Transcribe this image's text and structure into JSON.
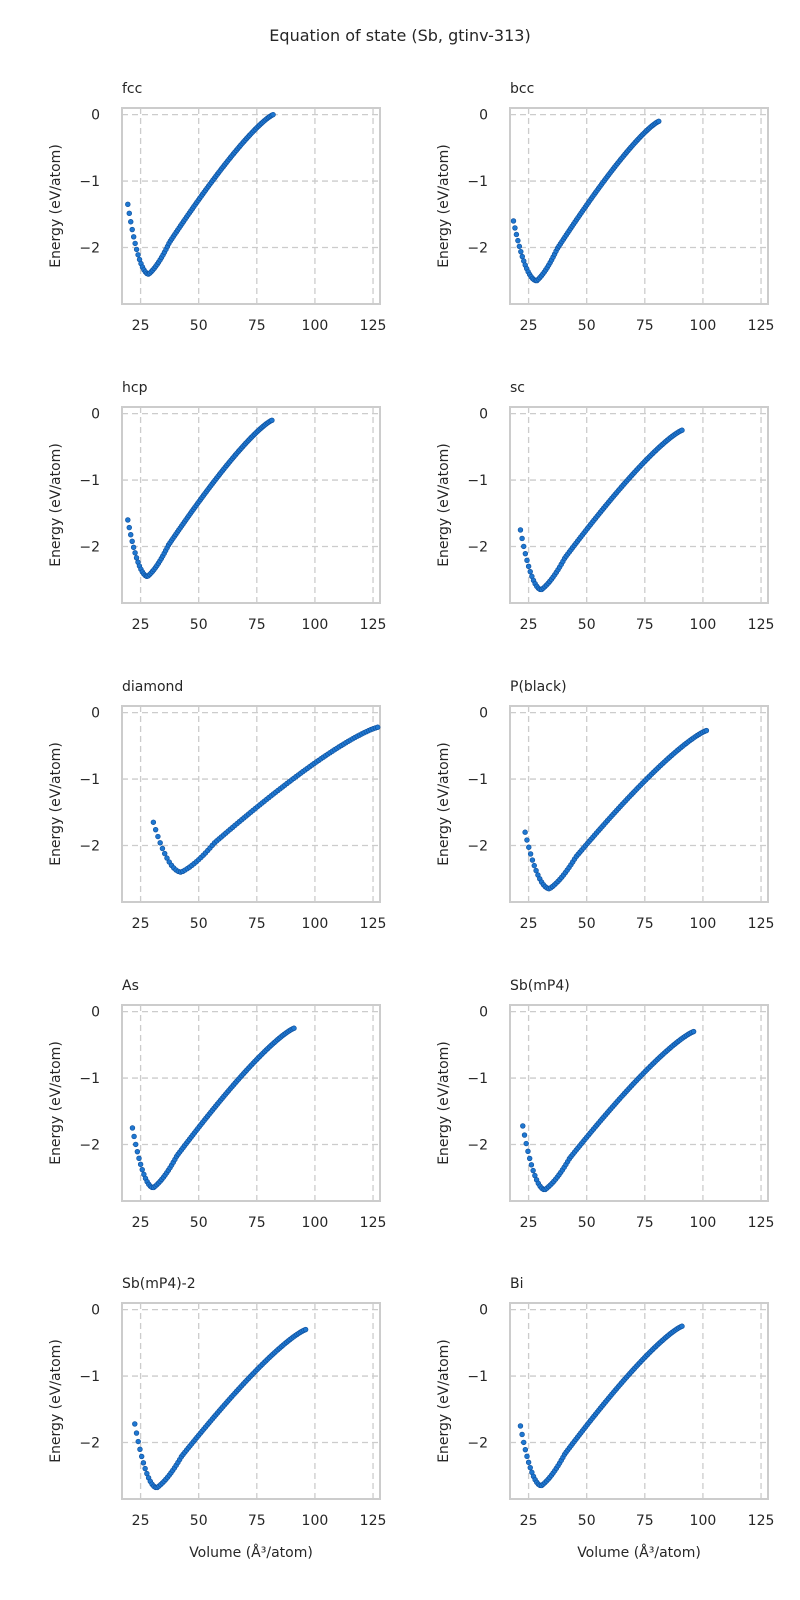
{
  "figure": {
    "title": "Equation of state (Sb, gtinv-313)",
    "point_color": "#1f77d0",
    "point_edge_color": "#0d4f9c",
    "grid_color": "#cccccc"
  },
  "chart_data": [
    {
      "type": "scatter",
      "title": "fcc",
      "xlabel": "",
      "ylabel": "Energy (eV/atom)",
      "xlim": [
        17,
        128
      ],
      "ylim": [
        -2.85,
        0.1
      ],
      "xticks": [
        25,
        50,
        75,
        100,
        125
      ],
      "yticks": [
        0,
        -1,
        -2
      ],
      "grid": true,
      "curve": {
        "v_min": 19.5,
        "v_max": 82,
        "v0": 28.5,
        "e_min": -2.4,
        "e_end": 0.0,
        "n": 100
      }
    },
    {
      "type": "scatter",
      "title": "bcc",
      "xlabel": "",
      "ylabel": "Energy (eV/atom)",
      "xlim": [
        17,
        128
      ],
      "ylim": [
        -2.85,
        0.1
      ],
      "xticks": [
        25,
        50,
        75,
        100,
        125
      ],
      "yticks": [
        0,
        -1,
        -2
      ],
      "grid": true,
      "curve": {
        "v_min": 18.5,
        "v_max": 81,
        "v0": 28.5,
        "e_min": -2.5,
        "e_end": -0.1,
        "e_start": -1.6,
        "n": 100
      }
    },
    {
      "type": "scatter",
      "title": "hcp",
      "xlabel": "",
      "ylabel": "Energy (eV/atom)",
      "xlim": [
        17,
        128
      ],
      "ylim": [
        -2.85,
        0.1
      ],
      "xticks": [
        25,
        50,
        75,
        100,
        125
      ],
      "yticks": [
        0,
        -1,
        -2
      ],
      "grid": true,
      "curve": {
        "v_min": 19.5,
        "v_max": 81.5,
        "v0": 28.0,
        "e_min": -2.45,
        "e_end": -0.1,
        "e_start": -1.6,
        "n": 100
      }
    },
    {
      "type": "scatter",
      "title": "sc",
      "xlabel": "",
      "ylabel": "Energy (eV/atom)",
      "xlim": [
        17,
        128
      ],
      "ylim": [
        -2.85,
        0.1
      ],
      "xticks": [
        25,
        50,
        75,
        100,
        125
      ],
      "yticks": [
        0,
        -1,
        -2
      ],
      "grid": true,
      "curve": {
        "v_min": 21.5,
        "v_max": 91,
        "v0": 30.5,
        "e_min": -2.65,
        "e_end": -0.25,
        "e_start": -1.75,
        "n": 100
      }
    },
    {
      "type": "scatter",
      "title": "diamond",
      "xlabel": "",
      "ylabel": "Energy (eV/atom)",
      "xlim": [
        17,
        128
      ],
      "ylim": [
        -2.85,
        0.1
      ],
      "xticks": [
        25,
        50,
        75,
        100,
        125
      ],
      "yticks": [
        0,
        -1,
        -2
      ],
      "grid": true,
      "curve": {
        "v_min": 30.5,
        "v_max": 127,
        "v0": 42.5,
        "e_min": -2.4,
        "e_end": -0.22,
        "e_start": -1.65,
        "n": 100
      }
    },
    {
      "type": "scatter",
      "title": "P(black)",
      "xlabel": "",
      "ylabel": "Energy (eV/atom)",
      "xlim": [
        17,
        128
      ],
      "ylim": [
        -2.85,
        0.1
      ],
      "xticks": [
        25,
        50,
        75,
        100,
        125
      ],
      "yticks": [
        0,
        -1,
        -2
      ],
      "grid": true,
      "curve": {
        "v_min": 23.5,
        "v_max": 101.5,
        "v0": 34.0,
        "e_min": -2.65,
        "e_end": -0.27,
        "e_start": -1.8,
        "n": 100
      }
    },
    {
      "type": "scatter",
      "title": "As",
      "xlabel": "",
      "ylabel": "Energy (eV/atom)",
      "xlim": [
        17,
        128
      ],
      "ylim": [
        -2.85,
        0.1
      ],
      "xticks": [
        25,
        50,
        75,
        100,
        125
      ],
      "yticks": [
        0,
        -1,
        -2
      ],
      "grid": true,
      "curve": {
        "v_min": 21.5,
        "v_max": 91,
        "v0": 30.5,
        "e_min": -2.65,
        "e_end": -0.25,
        "e_start": -1.75,
        "n": 100
      }
    },
    {
      "type": "scatter",
      "title": "Sb(mP4)",
      "xlabel": "",
      "ylabel": "Energy (eV/atom)",
      "xlim": [
        17,
        128
      ],
      "ylim": [
        -2.85,
        0.1
      ],
      "xticks": [
        25,
        50,
        75,
        100,
        125
      ],
      "yticks": [
        0,
        -1,
        -2
      ],
      "grid": true,
      "curve": {
        "v_min": 22.5,
        "v_max": 96,
        "v0": 32.0,
        "e_min": -2.68,
        "e_end": -0.3,
        "e_start": -1.72,
        "n": 100
      }
    },
    {
      "type": "scatter",
      "title": "Sb(mP4)-2",
      "xlabel": "Volume (Å³/atom)",
      "ylabel": "Energy (eV/atom)",
      "xlim": [
        17,
        128
      ],
      "ylim": [
        -2.85,
        0.1
      ],
      "xticks": [
        25,
        50,
        75,
        100,
        125
      ],
      "yticks": [
        0,
        -1,
        -2
      ],
      "grid": true,
      "curve": {
        "v_min": 22.5,
        "v_max": 96,
        "v0": 32.0,
        "e_min": -2.68,
        "e_end": -0.3,
        "e_start": -1.72,
        "n": 100
      }
    },
    {
      "type": "scatter",
      "title": "Bi",
      "xlabel": "Volume (Å³/atom)",
      "ylabel": "Energy (eV/atom)",
      "xlim": [
        17,
        128
      ],
      "ylim": [
        -2.85,
        0.1
      ],
      "xticks": [
        25,
        50,
        75,
        100,
        125
      ],
      "yticks": [
        0,
        -1,
        -2
      ],
      "grid": true,
      "curve": {
        "v_min": 21.5,
        "v_max": 91,
        "v0": 30.5,
        "e_min": -2.65,
        "e_end": -0.25,
        "e_start": -1.75,
        "n": 100
      }
    }
  ]
}
